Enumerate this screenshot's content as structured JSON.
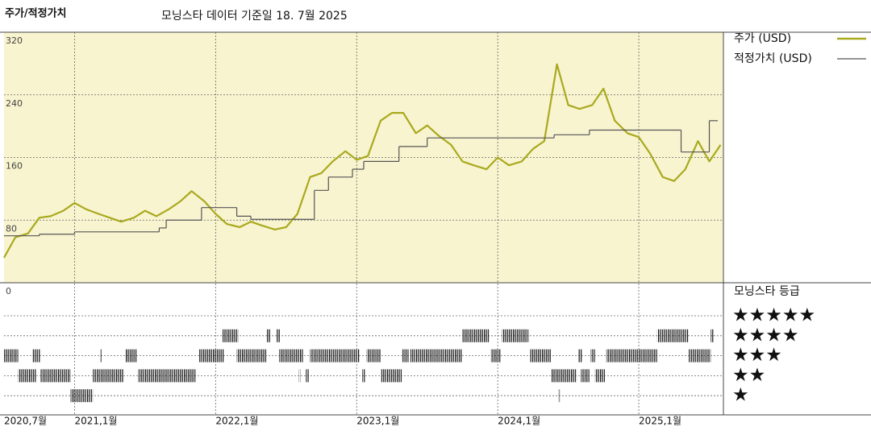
{
  "chart_data": {
    "type": "line",
    "title": "주가/적정가치",
    "subtitle": "모닝스타 데이터 기준일 18. 7월 2025",
    "xlim": [
      2020.5,
      2025.6
    ],
    "xticks": [
      {
        "value": 2020.5,
        "label": "2020,7월"
      },
      {
        "value": 2021.0,
        "label": "2021,1월"
      },
      {
        "value": 2022.0,
        "label": "2022,1월"
      },
      {
        "value": 2023.0,
        "label": "2023,1월"
      },
      {
        "value": 2024.0,
        "label": "2024,1월"
      },
      {
        "value": 2025.0,
        "label": "2025,1월"
      }
    ],
    "ylim": [
      0,
      320
    ],
    "yticks": [
      0,
      80,
      160,
      240,
      320
    ],
    "grid": true,
    "series": [
      {
        "name": "주가 (USD)",
        "color": "#a9a91f",
        "x": [
          2020.5,
          2020.58,
          2020.67,
          2020.75,
          2020.83,
          2020.92,
          2021.0,
          2021.08,
          2021.17,
          2021.25,
          2021.33,
          2021.42,
          2021.5,
          2021.58,
          2021.67,
          2021.75,
          2021.83,
          2021.92,
          2022.0,
          2022.08,
          2022.17,
          2022.25,
          2022.33,
          2022.42,
          2022.5,
          2022.58,
          2022.67,
          2022.75,
          2022.83,
          2022.92,
          2023.0,
          2023.08,
          2023.17,
          2023.25,
          2023.33,
          2023.42,
          2023.5,
          2023.58,
          2023.67,
          2023.75,
          2023.83,
          2023.92,
          2024.0,
          2024.08,
          2024.17,
          2024.25,
          2024.33,
          2024.42,
          2024.5,
          2024.58,
          2024.67,
          2024.75,
          2024.83,
          2024.92,
          2025.0,
          2025.08,
          2025.17,
          2025.25,
          2025.33,
          2025.42,
          2025.5,
          2025.58
        ],
        "values": [
          32,
          58,
          63,
          83,
          85,
          92,
          102,
          94,
          88,
          83,
          78,
          83,
          92,
          85,
          94,
          104,
          117,
          104,
          88,
          75,
          71,
          78,
          73,
          68,
          71,
          88,
          135,
          140,
          155,
          168,
          157,
          162,
          207,
          217,
          217,
          191,
          201,
          188,
          176,
          155,
          150,
          145,
          160,
          150,
          155,
          171,
          181,
          279,
          227,
          222,
          227,
          248,
          207,
          191,
          186,
          165,
          135,
          130,
          145,
          181,
          155,
          176
        ]
      },
      {
        "name": "적정가치 (USD)",
        "color": "#555555",
        "step": true,
        "x": [
          2020.5,
          2020.75,
          2021.0,
          2021.6,
          2021.65,
          2021.9,
          2022.15,
          2022.25,
          2022.7,
          2022.8,
          2022.97,
          2023.05,
          2023.3,
          2023.5,
          2024.1,
          2024.4,
          2024.65,
          2025.3,
          2025.5,
          2025.56
        ],
        "values": [
          60,
          62,
          65,
          70,
          80,
          96,
          85,
          81,
          118,
          135,
          145,
          155,
          174,
          185,
          185,
          189,
          195,
          167,
          207,
          207
        ]
      }
    ],
    "rating": {
      "title": "모닝스타 등급",
      "levels": [
        {
          "value": 5,
          "label": "★★★★★"
        },
        {
          "value": 4,
          "label": "★★★★"
        },
        {
          "value": 3,
          "label": "★★★"
        },
        {
          "value": 2,
          "label": "★★"
        },
        {
          "value": 1,
          "label": "★"
        }
      ],
      "periods": [
        {
          "start": 2020.5,
          "end": 2020.6,
          "stars": 3
        },
        {
          "start": 2020.6,
          "end": 2020.73,
          "stars": 2
        },
        {
          "start": 2020.7,
          "end": 2020.76,
          "stars": 3
        },
        {
          "start": 2020.76,
          "end": 2020.97,
          "stars": 2
        },
        {
          "start": 2020.97,
          "end": 2021.13,
          "stars": 1
        },
        {
          "start": 2021.18,
          "end": 2021.19,
          "stars": 3
        },
        {
          "start": 2021.13,
          "end": 2021.35,
          "stars": 2
        },
        {
          "start": 2021.36,
          "end": 2021.44,
          "stars": 3
        },
        {
          "start": 2021.45,
          "end": 2021.86,
          "stars": 2
        },
        {
          "start": 2021.88,
          "end": 2022.06,
          "stars": 3
        },
        {
          "start": 2022.05,
          "end": 2022.16,
          "stars": 4
        },
        {
          "start": 2022.15,
          "end": 2022.36,
          "stars": 3
        },
        {
          "start": 2022.36,
          "end": 2022.39,
          "stars": 4
        },
        {
          "start": 2022.43,
          "end": 2022.46,
          "stars": 4
        },
        {
          "start": 2022.45,
          "end": 2022.62,
          "stars": 3
        },
        {
          "start": 2022.59,
          "end": 2022.6,
          "stars": 2
        },
        {
          "start": 2022.64,
          "end": 2022.66,
          "stars": 2
        },
        {
          "start": 2022.67,
          "end": 2023.02,
          "stars": 3
        },
        {
          "start": 2023.04,
          "end": 2023.06,
          "stars": 2
        },
        {
          "start": 2023.07,
          "end": 2023.17,
          "stars": 3
        },
        {
          "start": 2023.17,
          "end": 2023.32,
          "stars": 2
        },
        {
          "start": 2023.32,
          "end": 2023.37,
          "stars": 3
        },
        {
          "start": 2023.38,
          "end": 2023.75,
          "stars": 3
        },
        {
          "start": 2023.75,
          "end": 2023.94,
          "stars": 4
        },
        {
          "start": 2023.95,
          "end": 2024.02,
          "stars": 3
        },
        {
          "start": 2024.03,
          "end": 2024.22,
          "stars": 4
        },
        {
          "start": 2024.23,
          "end": 2024.38,
          "stars": 3
        },
        {
          "start": 2024.38,
          "end": 2024.56,
          "stars": 2
        },
        {
          "start": 2024.43,
          "end": 2024.44,
          "stars": 1
        },
        {
          "start": 2024.57,
          "end": 2024.6,
          "stars": 3
        },
        {
          "start": 2024.59,
          "end": 2024.65,
          "stars": 2
        },
        {
          "start": 2024.66,
          "end": 2024.69,
          "stars": 3
        },
        {
          "start": 2024.69,
          "end": 2024.76,
          "stars": 2
        },
        {
          "start": 2024.77,
          "end": 2025.13,
          "stars": 3
        },
        {
          "start": 2025.13,
          "end": 2025.35,
          "stars": 4
        },
        {
          "start": 2025.35,
          "end": 2025.51,
          "stars": 3
        },
        {
          "start": 2025.51,
          "end": 2025.53,
          "stars": 4
        }
      ]
    }
  }
}
